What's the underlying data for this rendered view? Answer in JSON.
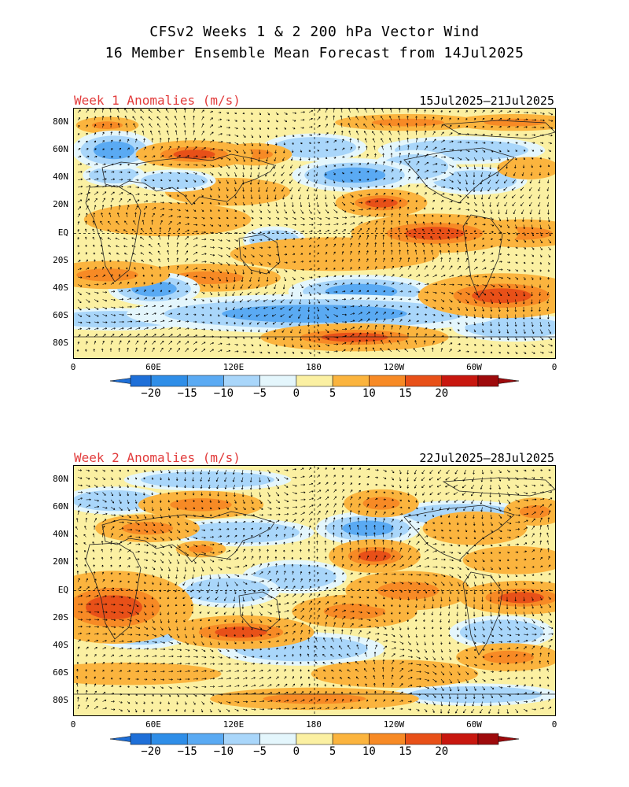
{
  "header": {
    "line1": "CFSv2 Weeks 1 & 2 200 hPa Vector Wind",
    "line2": "16 Member Ensemble Mean Forecast from 14Jul2025"
  },
  "panels": [
    {
      "title": "Week 1 Anomalies (m/s)",
      "dates": "15Jul2025–21Jul2025",
      "features": [
        {
          "lon": 25,
          "lat": 78,
          "rx": 15,
          "ry": 3,
          "v": 12
        },
        {
          "lon": 250,
          "lat": 80,
          "rx": 35,
          "ry": 3,
          "v": 10
        },
        {
          "lon": 330,
          "lat": 80,
          "rx": 30,
          "ry": 3,
          "v": 13
        },
        {
          "lon": 30,
          "lat": 60,
          "rx": 20,
          "ry": 7,
          "v": -12
        },
        {
          "lon": 90,
          "lat": 57,
          "rx": 28,
          "ry": 5,
          "v": 15
        },
        {
          "lon": 135,
          "lat": 57,
          "rx": 18,
          "ry": 4,
          "v": 10
        },
        {
          "lon": 180,
          "lat": 62,
          "rx": 25,
          "ry": 5,
          "v": -8
        },
        {
          "lon": 290,
          "lat": 60,
          "rx": 40,
          "ry": 5,
          "v": -9
        },
        {
          "lon": 340,
          "lat": 47,
          "rx": 15,
          "ry": 4,
          "v": 9
        },
        {
          "lon": 30,
          "lat": 42,
          "rx": 15,
          "ry": 4,
          "v": -8
        },
        {
          "lon": 75,
          "lat": 38,
          "rx": 20,
          "ry": 4,
          "v": -9
        },
        {
          "lon": 210,
          "lat": 42,
          "rx": 30,
          "ry": 6,
          "v": -10
        },
        {
          "lon": 255,
          "lat": 48,
          "rx": 20,
          "ry": 6,
          "v": -9
        },
        {
          "lon": 115,
          "lat": 30,
          "rx": 30,
          "ry": 5,
          "v": 7
        },
        {
          "lon": 230,
          "lat": 22,
          "rx": 22,
          "ry": 5,
          "v": 16
        },
        {
          "lon": 300,
          "lat": 38,
          "rx": 25,
          "ry": 5,
          "v": -7
        },
        {
          "lon": 70,
          "lat": 10,
          "rx": 40,
          "ry": 6,
          "v": 6
        },
        {
          "lon": 270,
          "lat": 0,
          "rx": 40,
          "ry": 7,
          "v": 15
        },
        {
          "lon": 335,
          "lat": 0,
          "rx": 30,
          "ry": 5,
          "v": 14
        },
        {
          "lon": 195,
          "lat": -15,
          "rx": 50,
          "ry": 6,
          "v": 9
        },
        {
          "lon": 150,
          "lat": -5,
          "rx": 15,
          "ry": 5,
          "v": -6
        },
        {
          "lon": 25,
          "lat": -30,
          "rx": 30,
          "ry": 5,
          "v": 14
        },
        {
          "lon": 100,
          "lat": -32,
          "rx": 35,
          "ry": 5,
          "v": 12
        },
        {
          "lon": 60,
          "lat": -40,
          "rx": 22,
          "ry": 6,
          "v": -12
        },
        {
          "lon": 215,
          "lat": -42,
          "rx": 35,
          "ry": 6,
          "v": -12
        },
        {
          "lon": 320,
          "lat": -45,
          "rx": 40,
          "ry": 8,
          "v": 19
        },
        {
          "lon": 180,
          "lat": -58,
          "rx": 90,
          "ry": 7,
          "v": -13
        },
        {
          "lon": 30,
          "lat": -62,
          "rx": 40,
          "ry": 4,
          "v": -8
        },
        {
          "lon": 210,
          "lat": -75,
          "rx": 45,
          "ry": 5,
          "v": 18
        },
        {
          "lon": 330,
          "lat": -68,
          "rx": 30,
          "ry": 5,
          "v": -6
        }
      ]
    },
    {
      "title": "Week 2 Anomalies (m/s)",
      "dates": "22Jul2025–28Jul2025",
      "features": [
        {
          "lon": 100,
          "lat": 80,
          "rx": 40,
          "ry": 4,
          "v": -6
        },
        {
          "lon": 30,
          "lat": 65,
          "rx": 25,
          "ry": 5,
          "v": -8
        },
        {
          "lon": 95,
          "lat": 62,
          "rx": 30,
          "ry": 5,
          "v": 10
        },
        {
          "lon": 230,
          "lat": 63,
          "rx": 18,
          "ry": 5,
          "v": 14
        },
        {
          "lon": 290,
          "lat": 55,
          "rx": 35,
          "ry": 5,
          "v": -8
        },
        {
          "lon": 345,
          "lat": 57,
          "rx": 15,
          "ry": 5,
          "v": 12
        },
        {
          "lon": 55,
          "lat": 45,
          "rx": 25,
          "ry": 5,
          "v": 10
        },
        {
          "lon": 125,
          "lat": 42,
          "rx": 35,
          "ry": 5,
          "v": -9
        },
        {
          "lon": 220,
          "lat": 45,
          "rx": 25,
          "ry": 6,
          "v": -12
        },
        {
          "lon": 300,
          "lat": 45,
          "rx": 25,
          "ry": 6,
          "v": 9
        },
        {
          "lon": 95,
          "lat": 30,
          "rx": 12,
          "ry": 3,
          "v": 10
        },
        {
          "lon": 225,
          "lat": 25,
          "rx": 22,
          "ry": 6,
          "v": 17
        },
        {
          "lon": 330,
          "lat": 22,
          "rx": 25,
          "ry": 5,
          "v": 6
        },
        {
          "lon": 30,
          "lat": -12,
          "rx": 38,
          "ry": 13,
          "v": 17
        },
        {
          "lon": 115,
          "lat": 0,
          "rx": 25,
          "ry": 6,
          "v": -9
        },
        {
          "lon": 165,
          "lat": 10,
          "rx": 25,
          "ry": 6,
          "v": -6
        },
        {
          "lon": 250,
          "lat": 0,
          "rx": 30,
          "ry": 7,
          "v": 14
        },
        {
          "lon": 335,
          "lat": -5,
          "rx": 30,
          "ry": 6,
          "v": 18
        },
        {
          "lon": 210,
          "lat": -15,
          "rx": 30,
          "ry": 6,
          "v": 12
        },
        {
          "lon": 125,
          "lat": -30,
          "rx": 35,
          "ry": 6,
          "v": 16
        },
        {
          "lon": 50,
          "lat": -30,
          "rx": 25,
          "ry": 6,
          "v": -8
        },
        {
          "lon": 170,
          "lat": -42,
          "rx": 40,
          "ry": 6,
          "v": -8
        },
        {
          "lon": 320,
          "lat": -30,
          "rx": 25,
          "ry": 6,
          "v": -9
        },
        {
          "lon": 325,
          "lat": -48,
          "rx": 25,
          "ry": 5,
          "v": 11
        },
        {
          "lon": 40,
          "lat": -60,
          "rx": 45,
          "ry": 4,
          "v": 9
        },
        {
          "lon": 240,
          "lat": -60,
          "rx": 40,
          "ry": 5,
          "v": 9
        },
        {
          "lon": 180,
          "lat": -78,
          "rx": 50,
          "ry": 4,
          "v": 13
        },
        {
          "lon": 300,
          "lat": -75,
          "rx": 40,
          "ry": 4,
          "v": -6
        }
      ]
    }
  ],
  "y_ticks": [
    "80N",
    "60N",
    "40N",
    "20N",
    "EQ",
    "20S",
    "40S",
    "60S",
    "80S"
  ],
  "y_tick_lats": [
    80,
    60,
    40,
    20,
    0,
    -20,
    -40,
    -60,
    -80
  ],
  "x_ticks": [
    "0",
    "60E",
    "120E",
    "180",
    "120W",
    "60W",
    "0"
  ],
  "x_tick_lons": [
    0,
    60,
    120,
    180,
    240,
    300,
    360
  ],
  "colorbar": {
    "labels": [
      "−20",
      "−15",
      "−10",
      "−5",
      "0",
      "5",
      "10",
      "15",
      "20"
    ],
    "bounds": [
      -20,
      -15,
      -10,
      -5,
      0,
      5,
      10,
      15,
      20
    ],
    "colors": [
      "#1e6fd8",
      "#2f8ee8",
      "#5aaaf3",
      "#a9d6fa",
      "#e4f6fc",
      "#fbf0a2",
      "#fbb43e",
      "#f78a25",
      "#e85018",
      "#c8170f",
      "#9e0a0c"
    ]
  }
}
